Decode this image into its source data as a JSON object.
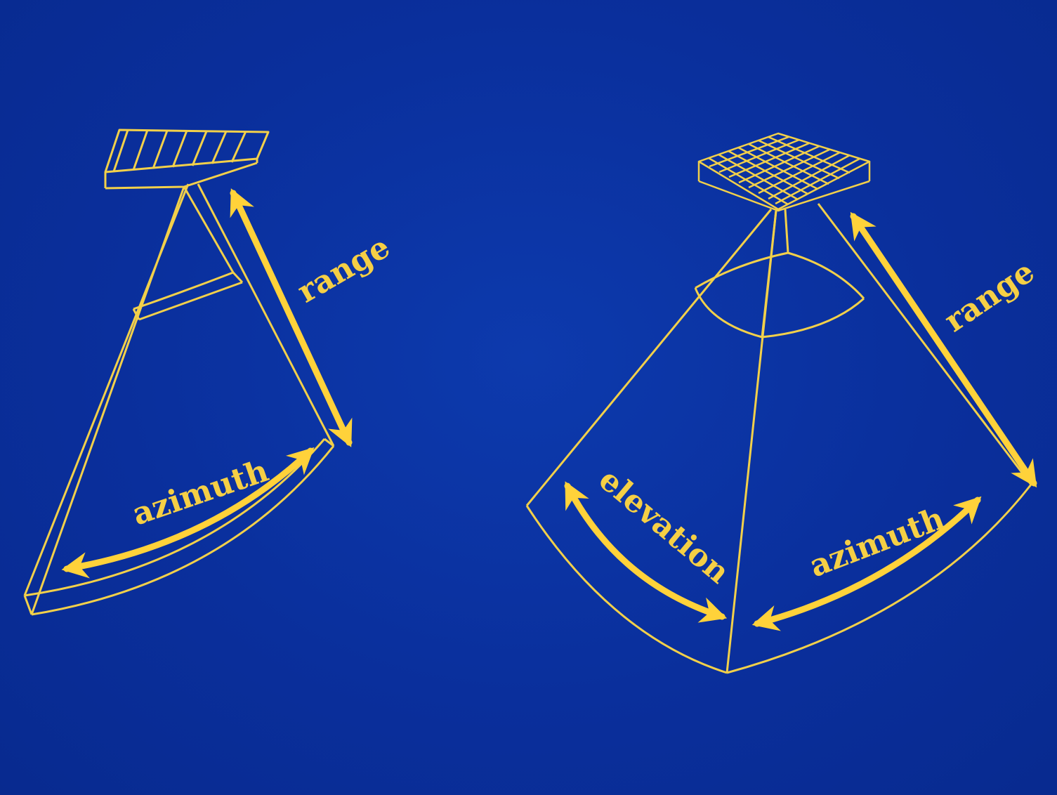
{
  "colors": {
    "background": "#0a2f9c",
    "line": "#f2d04a",
    "arrow": "#ffd23a"
  },
  "left_diagram": {
    "range_label": "range",
    "azimuth_label": "azimuth"
  },
  "right_diagram": {
    "range_label": "range",
    "elevation_label": "elevation",
    "azimuth_label": "azimuth"
  }
}
